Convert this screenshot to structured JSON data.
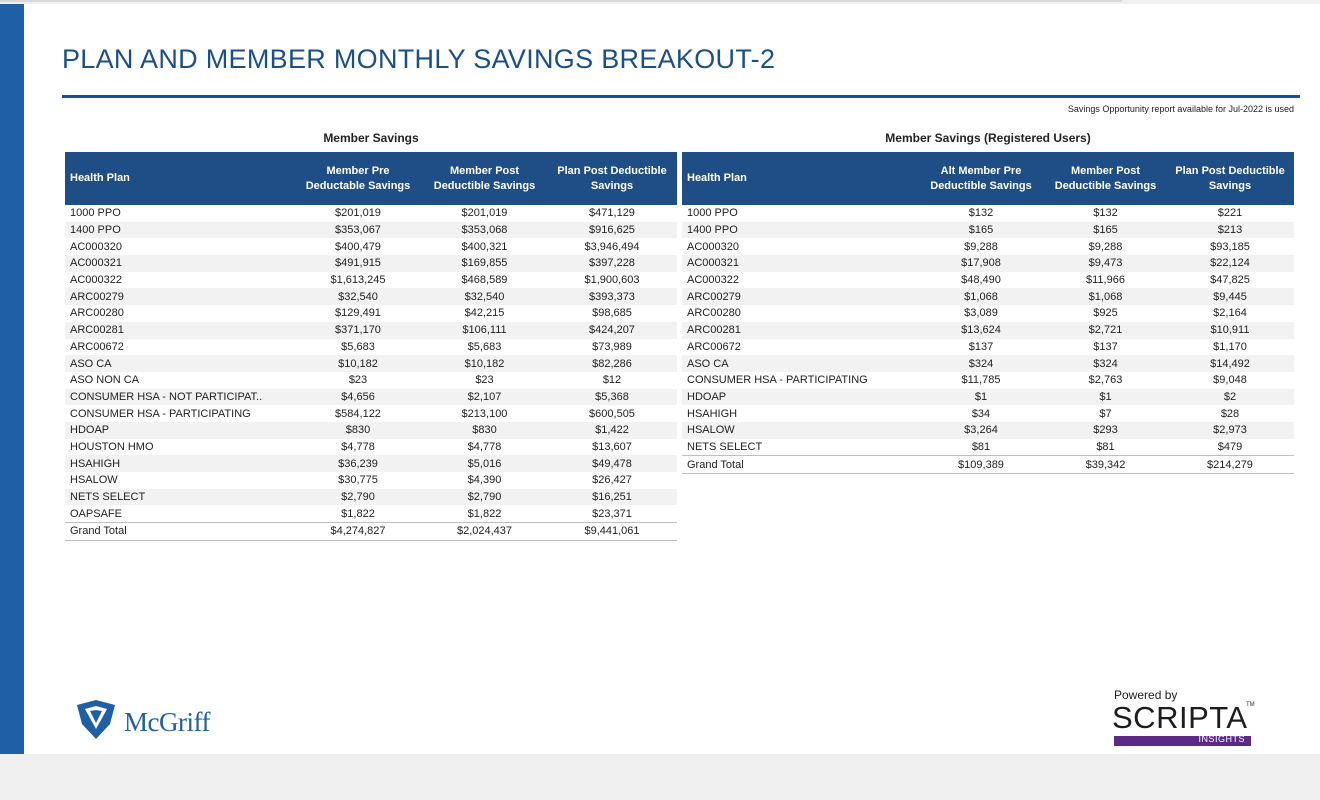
{
  "page": {
    "title": "PLAN AND MEMBER MONTHLY SAVINGS BREAKOUT-2",
    "note": "Savings Opportunity report available for Jul-2022 is used",
    "accent_color": "#1f4e87",
    "sidebar_color": "#1f5fa6"
  },
  "left_table": {
    "caption": "Member Savings",
    "headers": [
      "Health Plan",
      "Member Pre Deductable Savings",
      "Member Post Deductible Savings",
      "Plan Post Deductible Savings"
    ],
    "rows": [
      [
        "1000 PPO",
        "$201,019",
        "$201,019",
        "$471,129"
      ],
      [
        "1400 PPO",
        "$353,067",
        "$353,068",
        "$916,625"
      ],
      [
        "AC000320",
        "$400,479",
        "$400,321",
        "$3,946,494"
      ],
      [
        "AC000321",
        "$491,915",
        "$169,855",
        "$397,228"
      ],
      [
        "AC000322",
        "$1,613,245",
        "$468,589",
        "$1,900,603"
      ],
      [
        "ARC00279",
        "$32,540",
        "$32,540",
        "$393,373"
      ],
      [
        "ARC00280",
        "$129,491",
        "$42,215",
        "$98,685"
      ],
      [
        "ARC00281",
        "$371,170",
        "$106,111",
        "$424,207"
      ],
      [
        "ARC00672",
        "$5,683",
        "$5,683",
        "$73,989"
      ],
      [
        "ASO CA",
        "$10,182",
        "$10,182",
        "$82,286"
      ],
      [
        "ASO NON CA",
        "$23",
        "$23",
        "$12"
      ],
      [
        "CONSUMER HSA - NOT PARTICIPAT..",
        "$4,656",
        "$2,107",
        "$5,368"
      ],
      [
        "CONSUMER HSA - PARTICIPATING",
        "$584,122",
        "$213,100",
        "$600,505"
      ],
      [
        "HDOAP",
        "$830",
        "$830",
        "$1,422"
      ],
      [
        "HOUSTON HMO",
        "$4,778",
        "$4,778",
        "$13,607"
      ],
      [
        "HSAHIGH",
        "$36,239",
        "$5,016",
        "$49,478"
      ],
      [
        "HSALOW",
        "$30,775",
        "$4,390",
        "$26,427"
      ],
      [
        "NETS SELECT",
        "$2,790",
        "$2,790",
        "$16,251"
      ],
      [
        "OAPSAFE",
        "$1,822",
        "$1,822",
        "$23,371"
      ]
    ],
    "total": [
      "Grand Total",
      "$4,274,827",
      "$2,024,437",
      "$9,441,061"
    ]
  },
  "right_table": {
    "caption": "Member Savings (Registered Users)",
    "headers": [
      "Health Plan",
      "Alt Member Pre Deductible Savings",
      "Member Post Deductible Savings",
      "Plan Post Deductible Savings"
    ],
    "rows": [
      [
        "1000 PPO",
        "$132",
        "$132",
        "$221"
      ],
      [
        "1400 PPO",
        "$165",
        "$165",
        "$213"
      ],
      [
        "AC000320",
        "$9,288",
        "$9,288",
        "$93,185"
      ],
      [
        "AC000321",
        "$17,908",
        "$9,473",
        "$22,124"
      ],
      [
        "AC000322",
        "$48,490",
        "$11,966",
        "$47,825"
      ],
      [
        "ARC00279",
        "$1,068",
        "$1,068",
        "$9,445"
      ],
      [
        "ARC00280",
        "$3,089",
        "$925",
        "$2,164"
      ],
      [
        "ARC00281",
        "$13,624",
        "$2,721",
        "$10,911"
      ],
      [
        "ARC00672",
        "$137",
        "$137",
        "$1,170"
      ],
      [
        "ASO CA",
        "$324",
        "$324",
        "$14,492"
      ],
      [
        "CONSUMER HSA - PARTICIPATING",
        "$11,785",
        "$2,763",
        "$9,048"
      ],
      [
        "HDOAP",
        "$1",
        "$1",
        "$2"
      ],
      [
        "HSAHIGH",
        "$34",
        "$7",
        "$28"
      ],
      [
        "HSALOW",
        "$3,264",
        "$293",
        "$2,973"
      ],
      [
        "NETS SELECT",
        "$81",
        "$81",
        "$479"
      ]
    ],
    "total": [
      "Grand Total",
      "$109,389",
      "$39,342",
      "$214,279"
    ]
  },
  "logos": {
    "left_brand": "McGriff",
    "left_icon": "shield-logo-icon",
    "right_powered": "Powered by",
    "right_brand": "SCRIPTA",
    "right_sub": "INSIGHTS",
    "right_tm": "TM"
  }
}
